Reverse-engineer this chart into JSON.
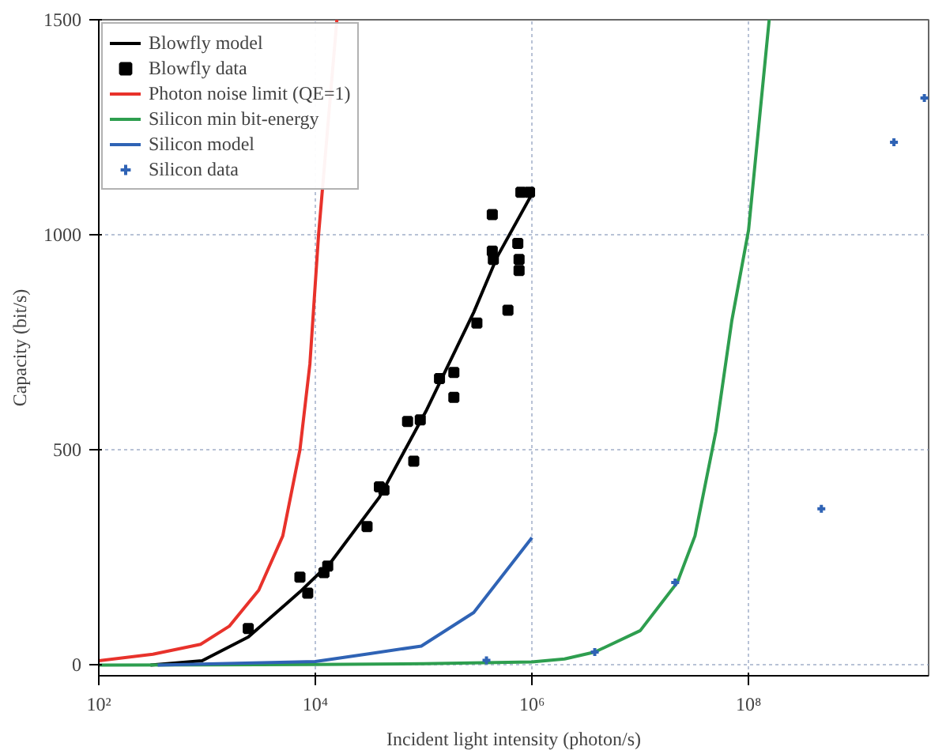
{
  "chart_data": {
    "type": "line",
    "xlabel": "Incident light intensity (photon/s)",
    "ylabel": "Capacity (bit/s)",
    "log": "x",
    "xlim": [
      100,
      4600000000
    ],
    "ylim": [
      -25,
      1500
    ],
    "xticks": [
      {
        "value": 100,
        "label": "10²"
      },
      {
        "value": 10000,
        "label": "10⁴"
      },
      {
        "value": 1000000,
        "label": "10⁶"
      },
      {
        "value": 100000000,
        "label": "10⁸"
      }
    ],
    "yticks": [
      0,
      500,
      1000,
      1500
    ],
    "grid": true,
    "legend": "top left",
    "series": [
      {
        "name": "Blowfly model",
        "color": "#000000",
        "x": [
          300,
          900,
          2400,
          7200,
          14000,
          39000,
          105000,
          290000,
          480000,
          1000000
        ],
        "values": [
          0,
          10,
          65,
          170,
          240,
          390,
          590,
          820,
          950,
          1095
        ]
      },
      {
        "name": "Blowfly data",
        "type": "scatter",
        "marker": "square",
        "color": "#000000",
        "x": [
          2400,
          7200,
          8500,
          12000,
          13000,
          30000,
          39000,
          43000,
          71000,
          81000,
          93000,
          140000,
          190000,
          190000,
          310000,
          430000,
          430000,
          440000,
          600000,
          740000,
          760000,
          760000,
          790000,
          950000
        ],
        "values": [
          85,
          204,
          167,
          215,
          230,
          322,
          414,
          407,
          566,
          474,
          570,
          666,
          680,
          622,
          795,
          1047,
          962,
          943,
          825,
          980,
          943,
          917,
          1099,
          1099
        ]
      },
      {
        "name": "Photon noise limit (QE=1)",
        "color": "#e8322b",
        "x": [
          100,
          316,
          870,
          1600,
          3000,
          5000,
          7200,
          8900,
          10700,
          15800
        ],
        "values": [
          10,
          25,
          48,
          90,
          174,
          300,
          500,
          700,
          1000,
          1500
        ]
      },
      {
        "name": "Silicon min bit-energy",
        "color": "#2e9e4f",
        "x": [
          100,
          10000,
          100000,
          1000000,
          2000000,
          3800000,
          10000000,
          22000000,
          32000000,
          50000000,
          70000000,
          100000000,
          155000000
        ],
        "values": [
          0,
          1,
          3,
          7,
          14,
          30,
          80,
          192,
          300,
          544,
          800,
          1011,
          1500
        ]
      },
      {
        "name": "Silicon model",
        "color": "#2f63b5",
        "x": [
          350,
          10000,
          31000,
          95000,
          290000,
          1000000
        ],
        "values": [
          0,
          8,
          26,
          44,
          122,
          296
        ]
      },
      {
        "name": "Silicon data",
        "type": "scatter",
        "marker": "cross",
        "color": "#2f63b5",
        "x": [
          380000,
          3800000,
          21000000,
          470000000,
          2200000000,
          4200000000
        ],
        "values": [
          11,
          30,
          192,
          363,
          1215,
          1318
        ]
      }
    ]
  }
}
